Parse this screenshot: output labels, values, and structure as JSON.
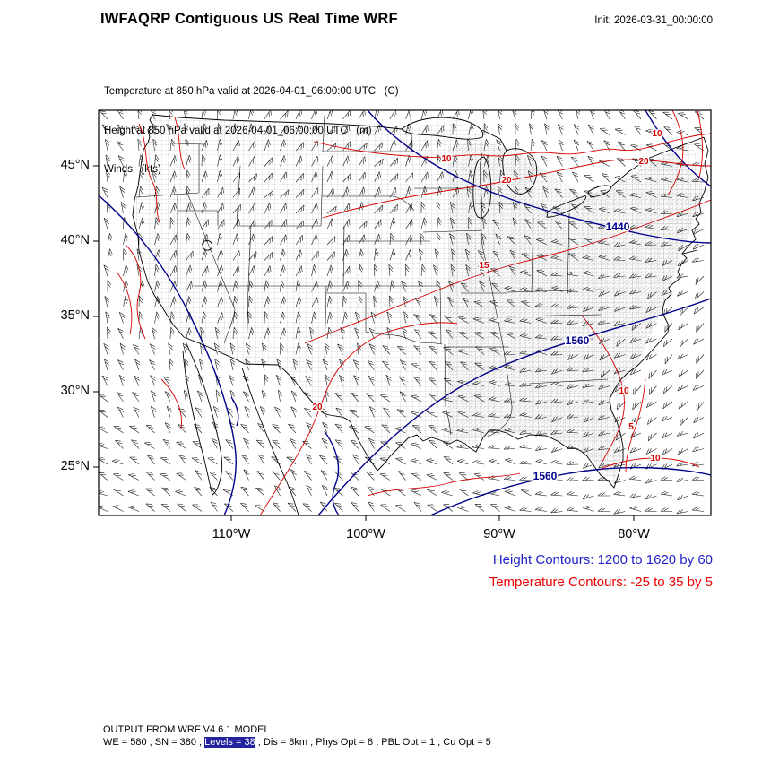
{
  "header": {
    "title": "IWFAQRP Contiguous US Real Time WRF",
    "init_label": "Init: 2026-03-31_00:00:00"
  },
  "subtitle": {
    "line1": "Temperature at 850 hPa valid at 2026-04-01_06:00:00 UTC   (C)",
    "line2": "Height at 850 hPa valid at 2026-04-01_06:00:00 UTC   (m)",
    "line3": "Winds   (kts)"
  },
  "axes": {
    "y_ticks": [
      "45°N",
      "40°N",
      "35°N",
      "30°N",
      "25°N"
    ],
    "x_ticks": [
      "110°W",
      "100°W",
      "90°W",
      "80°W"
    ]
  },
  "legend": {
    "height_line": "Height Contours: 1200 to 1620 by 60",
    "temperature_line": "Temperature Contours: -25 to 35 by 5",
    "height_color": "#2222cc",
    "temperature_color": "#ee0000"
  },
  "footer": {
    "line1": "OUTPUT FROM WRF V4.6.1 MODEL",
    "line2_prefix": "WE = 580 ; SN = 380 ; ",
    "line2_highlight": "Levels = 38",
    "line2_suffix": " ; Dis = 8km ; Phys Opt = 8 ; PBL Opt = 1 ; Cu Opt = 5"
  },
  "chart_data": {
    "type": "contour-map",
    "title": "IWFAQRP Contiguous US Real Time WRF",
    "region": "Contiguous United States",
    "init_time": "2026-03-31_00:00:00",
    "valid_time": "2026-04-01_06:00:00 UTC",
    "x_ticks": [
      "110°W",
      "100°W",
      "90°W",
      "80°W"
    ],
    "y_ticks": [
      "45°N",
      "40°N",
      "35°N",
      "30°N",
      "25°N"
    ],
    "fields": [
      {
        "name": "Temperature at 850 hPa",
        "units": "C",
        "style": "red contour lines",
        "color": "#d40000",
        "min": -25,
        "max": 35,
        "interval": 5
      },
      {
        "name": "Height at 850 hPa",
        "units": "m",
        "style": "blue contour lines",
        "color": "#00008b",
        "min": 1200,
        "max": 1620,
        "interval": 60
      },
      {
        "name": "Winds",
        "units": "kts",
        "style": "black wind barbs",
        "color": "#000000"
      }
    ],
    "temp_labels": [
      "10",
      "20",
      "10",
      "20",
      "15",
      "20",
      "10",
      "5",
      "10"
    ],
    "height_labels": [
      "1440",
      "1560",
      "1560"
    ]
  }
}
